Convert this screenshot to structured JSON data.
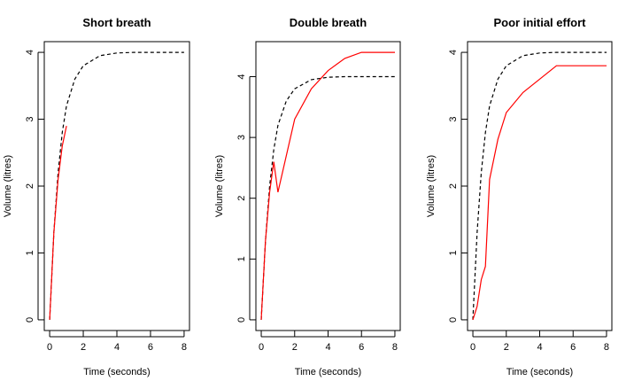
{
  "chart_data": [
    {
      "type": "line",
      "title": "Short breath",
      "xlabel": "Time (seconds)",
      "ylabel": "Volume (litres)",
      "xlim": [
        0,
        8
      ],
      "ylim": [
        0,
        4
      ],
      "xticks": [
        0,
        2,
        4,
        6,
        8
      ],
      "yticks": [
        0,
        1,
        2,
        3,
        4
      ],
      "grid": false,
      "series": [
        {
          "role": "reference",
          "color": "#000000",
          "dash": "dashed",
          "x": [
            0,
            0.25,
            0.5,
            0.75,
            1,
            1.5,
            2,
            3,
            4,
            5,
            6,
            7,
            8
          ],
          "y": [
            0,
            1.3,
            2.2,
            2.8,
            3.2,
            3.6,
            3.8,
            3.95,
            3.99,
            4.0,
            4.0,
            4.0,
            4.0
          ]
        },
        {
          "role": "trial",
          "color": "#ff0000",
          "dash": "solid",
          "x": [
            0,
            0.25,
            0.5,
            0.75,
            1
          ],
          "y": [
            0,
            1.3,
            2.1,
            2.6,
            2.9
          ]
        }
      ]
    },
    {
      "type": "line",
      "title": "Double breath",
      "xlabel": "Time (seconds)",
      "ylabel": "Volume (litres)",
      "xlim": [
        0,
        8
      ],
      "ylim": [
        0,
        4.4
      ],
      "xticks": [
        0,
        2,
        4,
        6,
        8
      ],
      "yticks": [
        0,
        1,
        2,
        3,
        4
      ],
      "grid": false,
      "series": [
        {
          "role": "reference",
          "color": "#000000",
          "dash": "dashed",
          "x": [
            0,
            0.25,
            0.5,
            0.75,
            1,
            1.5,
            2,
            3,
            4,
            5,
            6,
            7,
            8
          ],
          "y": [
            0,
            1.3,
            2.2,
            2.8,
            3.2,
            3.6,
            3.8,
            3.95,
            3.99,
            4.0,
            4.0,
            4.0,
            4.0
          ]
        },
        {
          "role": "trial",
          "color": "#ff0000",
          "dash": "solid",
          "x": [
            0,
            0.25,
            0.5,
            0.75,
            1,
            2,
            3,
            4,
            5,
            6,
            7,
            8
          ],
          "y": [
            0,
            1.3,
            2.1,
            2.6,
            2.1,
            3.3,
            3.8,
            4.1,
            4.3,
            4.4,
            4.4,
            4.4
          ]
        }
      ]
    },
    {
      "type": "line",
      "title": "Poor initial effort",
      "xlabel": "Time (seconds)",
      "ylabel": "Volume (litres)",
      "xlim": [
        0,
        8
      ],
      "ylim": [
        0,
        4
      ],
      "xticks": [
        0,
        2,
        4,
        6,
        8
      ],
      "yticks": [
        0,
        1,
        2,
        3,
        4
      ],
      "grid": false,
      "series": [
        {
          "role": "reference",
          "color": "#000000",
          "dash": "dashed",
          "x": [
            0,
            0.25,
            0.5,
            0.75,
            1,
            1.5,
            2,
            3,
            4,
            5,
            6,
            7,
            8
          ],
          "y": [
            0,
            1.3,
            2.2,
            2.8,
            3.2,
            3.6,
            3.8,
            3.95,
            3.99,
            4.0,
            4.0,
            4.0,
            4.0
          ]
        },
        {
          "role": "trial",
          "color": "#ff0000",
          "dash": "solid",
          "x": [
            0,
            0.25,
            0.5,
            0.75,
            1,
            1.5,
            2,
            3,
            4,
            5,
            6,
            7,
            8
          ],
          "y": [
            0,
            0.2,
            0.6,
            0.8,
            2.1,
            2.7,
            3.1,
            3.4,
            3.6,
            3.8,
            3.8,
            3.8,
            3.8
          ]
        }
      ]
    }
  ]
}
